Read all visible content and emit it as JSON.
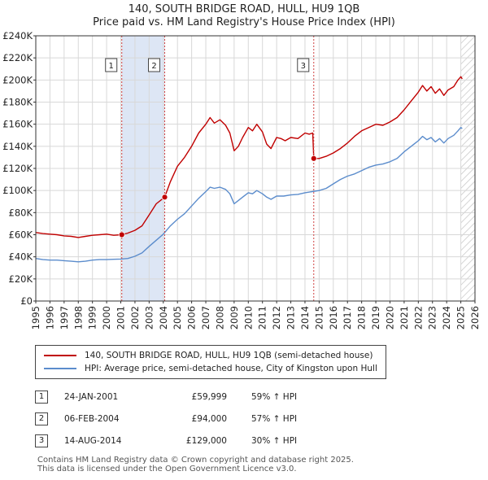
{
  "header": {
    "title_line1": "140, SOUTH BRIDGE ROAD, HULL, HU9 1QB",
    "title_line2": "Price paid vs. HM Land Registry's House Price Index (HPI)"
  },
  "colors": {
    "property_line": "#c00000",
    "hpi_line": "#5b8ccc",
    "shade": "#dde6f5",
    "grid": "#d8d8d8",
    "vline": "#d04040",
    "hatch": "#c8c8c8"
  },
  "chart_data": {
    "type": "line",
    "x_ticks": [
      "1995",
      "1996",
      "1997",
      "1998",
      "1999",
      "2000",
      "2001",
      "2002",
      "2003",
      "2004",
      "2005",
      "2006",
      "2007",
      "2008",
      "2009",
      "2010",
      "2011",
      "2012",
      "2013",
      "2014",
      "2015",
      "2016",
      "2017",
      "2018",
      "2019",
      "2020",
      "2021",
      "2022",
      "2023",
      "2024",
      "2025",
      "2026"
    ],
    "y_ticks": [
      "£0",
      "£20K",
      "£40K",
      "£60K",
      "£80K",
      "£100K",
      "£120K",
      "£140K",
      "£160K",
      "£180K",
      "£200K",
      "£220K",
      "£240K"
    ],
    "xlim": [
      1995,
      2026
    ],
    "ylim": [
      0,
      240000
    ],
    "shaded_range": [
      2001.07,
      2004.1
    ],
    "hatched_from": 2025.0,
    "series": [
      {
        "name": "140, SOUTH BRIDGE ROAD, HULL, HU9 1QB (semi-detached house)",
        "points": [
          [
            1995,
            62000
          ],
          [
            1995.5,
            61000
          ],
          [
            1996,
            60500
          ],
          [
            1996.5,
            60000
          ],
          [
            1997,
            59000
          ],
          [
            1997.5,
            58500
          ],
          [
            1998,
            57500
          ],
          [
            1998.5,
            58500
          ],
          [
            1999,
            59500
          ],
          [
            1999.5,
            60000
          ],
          [
            2000,
            60500
          ],
          [
            2000.5,
            59500
          ],
          [
            2001.07,
            59999
          ],
          [
            2001.5,
            61500
          ],
          [
            2002,
            64000
          ],
          [
            2002.5,
            68000
          ],
          [
            2003,
            78000
          ],
          [
            2003.5,
            88000
          ],
          [
            2004.1,
            94000
          ],
          [
            2004.5,
            108000
          ],
          [
            2005,
            122000
          ],
          [
            2005.5,
            130000
          ],
          [
            2006,
            140000
          ],
          [
            2006.5,
            152000
          ],
          [
            2007,
            160000
          ],
          [
            2007.3,
            166000
          ],
          [
            2007.6,
            161000
          ],
          [
            2008,
            164000
          ],
          [
            2008.4,
            159000
          ],
          [
            2008.7,
            152000
          ],
          [
            2009,
            136000
          ],
          [
            2009.3,
            140000
          ],
          [
            2009.6,
            148000
          ],
          [
            2010,
            157000
          ],
          [
            2010.3,
            154000
          ],
          [
            2010.6,
            160000
          ],
          [
            2011,
            153000
          ],
          [
            2011.3,
            142000
          ],
          [
            2011.6,
            138000
          ],
          [
            2012,
            148000
          ],
          [
            2012.3,
            147000
          ],
          [
            2012.6,
            145000
          ],
          [
            2013,
            148000
          ],
          [
            2013.5,
            147000
          ],
          [
            2014,
            152000
          ],
          [
            2014.3,
            151000
          ],
          [
            2014.55,
            152000
          ],
          [
            2014.62,
            129000
          ],
          [
            2015,
            129000
          ],
          [
            2015.5,
            131000
          ],
          [
            2016,
            134000
          ],
          [
            2016.5,
            138000
          ],
          [
            2017,
            143000
          ],
          [
            2017.5,
            149000
          ],
          [
            2018,
            154000
          ],
          [
            2018.5,
            157000
          ],
          [
            2019,
            160000
          ],
          [
            2019.5,
            159000
          ],
          [
            2020,
            162000
          ],
          [
            2020.5,
            166000
          ],
          [
            2021,
            173000
          ],
          [
            2021.5,
            181000
          ],
          [
            2022,
            189000
          ],
          [
            2022.3,
            195000
          ],
          [
            2022.6,
            190000
          ],
          [
            2022.9,
            194000
          ],
          [
            2023.2,
            188000
          ],
          [
            2023.5,
            192000
          ],
          [
            2023.8,
            186000
          ],
          [
            2024.1,
            191000
          ],
          [
            2024.5,
            194000
          ],
          [
            2024.8,
            200000
          ],
          [
            2025.0,
            203000
          ],
          [
            2025.1,
            201000
          ]
        ]
      },
      {
        "name": "HPI: Average price, semi-detached house, City of Kingston upon Hull",
        "points": [
          [
            1995,
            38500
          ],
          [
            1995.5,
            37500
          ],
          [
            1996,
            37000
          ],
          [
            1996.5,
            37000
          ],
          [
            1997,
            36500
          ],
          [
            1997.5,
            36000
          ],
          [
            1998,
            35500
          ],
          [
            1998.5,
            36000
          ],
          [
            1999,
            37000
          ],
          [
            1999.5,
            37500
          ],
          [
            2000,
            37500
          ],
          [
            2000.5,
            37800
          ],
          [
            2001,
            38000
          ],
          [
            2001.5,
            38500
          ],
          [
            2002,
            40500
          ],
          [
            2002.5,
            43500
          ],
          [
            2003,
            49500
          ],
          [
            2003.5,
            55000
          ],
          [
            2004,
            60500
          ],
          [
            2004.5,
            68000
          ],
          [
            2005,
            74000
          ],
          [
            2005.5,
            79000
          ],
          [
            2006,
            86000
          ],
          [
            2006.5,
            93000
          ],
          [
            2007,
            99000
          ],
          [
            2007.3,
            103000
          ],
          [
            2007.6,
            102000
          ],
          [
            2008,
            103000
          ],
          [
            2008.4,
            101000
          ],
          [
            2008.7,
            97000
          ],
          [
            2009,
            88000
          ],
          [
            2009.3,
            91000
          ],
          [
            2009.6,
            94000
          ],
          [
            2010,
            98000
          ],
          [
            2010.3,
            97000
          ],
          [
            2010.6,
            100000
          ],
          [
            2011,
            97000
          ],
          [
            2011.3,
            94000
          ],
          [
            2011.6,
            92000
          ],
          [
            2012,
            95000
          ],
          [
            2012.5,
            95000
          ],
          [
            2013,
            96000
          ],
          [
            2013.5,
            96500
          ],
          [
            2014,
            98000
          ],
          [
            2014.5,
            99000
          ],
          [
            2015,
            100000
          ],
          [
            2015.5,
            102000
          ],
          [
            2016,
            106000
          ],
          [
            2016.5,
            110000
          ],
          [
            2017,
            113000
          ],
          [
            2017.5,
            115000
          ],
          [
            2018,
            118000
          ],
          [
            2018.5,
            121000
          ],
          [
            2019,
            123000
          ],
          [
            2019.5,
            124000
          ],
          [
            2020,
            126000
          ],
          [
            2020.5,
            129000
          ],
          [
            2021,
            135000
          ],
          [
            2021.5,
            140000
          ],
          [
            2022,
            145000
          ],
          [
            2022.3,
            149000
          ],
          [
            2022.6,
            146000
          ],
          [
            2022.9,
            148000
          ],
          [
            2023.2,
            144000
          ],
          [
            2023.5,
            147000
          ],
          [
            2023.8,
            143000
          ],
          [
            2024.1,
            147000
          ],
          [
            2024.5,
            150000
          ],
          [
            2024.8,
            154000
          ],
          [
            2025.0,
            157000
          ],
          [
            2025.1,
            156000
          ]
        ]
      }
    ],
    "sales": [
      {
        "label": "1",
        "year": 2001.07,
        "price": 59999
      },
      {
        "label": "2",
        "year": 2004.1,
        "price": 94000
      },
      {
        "label": "3",
        "year": 2014.62,
        "price": 129000
      }
    ]
  },
  "legend": {
    "property_label": "140, SOUTH BRIDGE ROAD, HULL, HU9 1QB (semi-detached house)",
    "hpi_label": "HPI: Average price, semi-detached house, City of Kingston upon Hull"
  },
  "transactions": [
    {
      "num": "1",
      "date": "24-JAN-2001",
      "price": "£59,999",
      "change": "59% ↑ HPI"
    },
    {
      "num": "2",
      "date": "06-FEB-2004",
      "price": "£94,000",
      "change": "57% ↑ HPI"
    },
    {
      "num": "3",
      "date": "14-AUG-2014",
      "price": "£129,000",
      "change": "30% ↑ HPI"
    }
  ],
  "footer": {
    "line1": "Contains HM Land Registry data © Crown copyright and database right 2025.",
    "line2": "This data is licensed under the Open Government Licence v3.0."
  }
}
